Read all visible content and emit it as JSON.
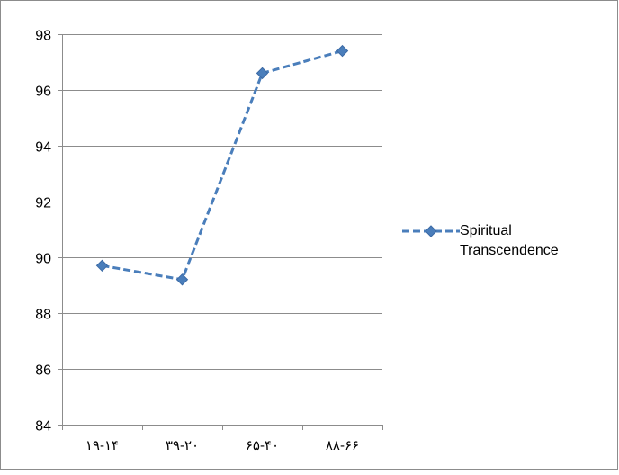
{
  "chart_data": {
    "type": "line",
    "categories": [
      "۱۹-۱۴",
      "۳۹-۲۰",
      "۶۵-۴۰",
      "۸۸-۶۶"
    ],
    "series": [
      {
        "name": "Spiritual Transcendence",
        "values": [
          89.7,
          89.2,
          96.6,
          97.4
        ],
        "color": "#4a7ebb",
        "line_style": "dashed",
        "marker": "diamond"
      }
    ],
    "ylim": [
      84,
      98
    ],
    "y_ticks": [
      "84",
      "86",
      "88",
      "90",
      "92",
      "94",
      "96",
      "98"
    ],
    "grid": "horizontal",
    "legend_position": "right"
  },
  "legend": {
    "line1": "Spiritual",
    "line2": "Transcendence"
  }
}
